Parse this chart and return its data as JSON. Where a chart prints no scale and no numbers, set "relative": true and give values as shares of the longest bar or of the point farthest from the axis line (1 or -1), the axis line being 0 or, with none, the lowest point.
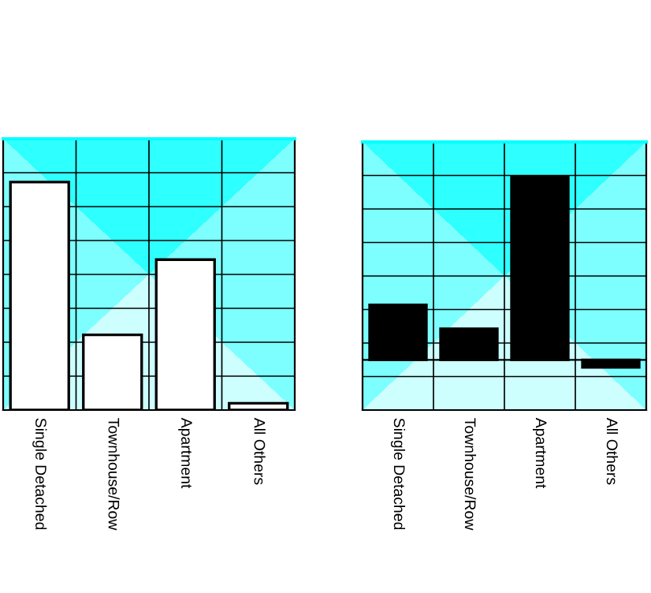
{
  "chart_data": [
    {
      "type": "bar",
      "relative": true,
      "categories": [
        "Single Detached",
        "Townhouse/Row",
        "Apartment",
        "All Others"
      ],
      "values": [
        1,
        0.33,
        0.66,
        0.03
      ],
      "color": "#ffffff",
      "grid": true
    },
    {
      "type": "bar",
      "relative": true,
      "categories": [
        "Single Detached",
        "Townhouse/Row",
        "Apartment",
        "All Others"
      ],
      "values": [
        0.3,
        0.17,
        1,
        -0.04
      ],
      "color": "#000000",
      "grid": true
    }
  ]
}
